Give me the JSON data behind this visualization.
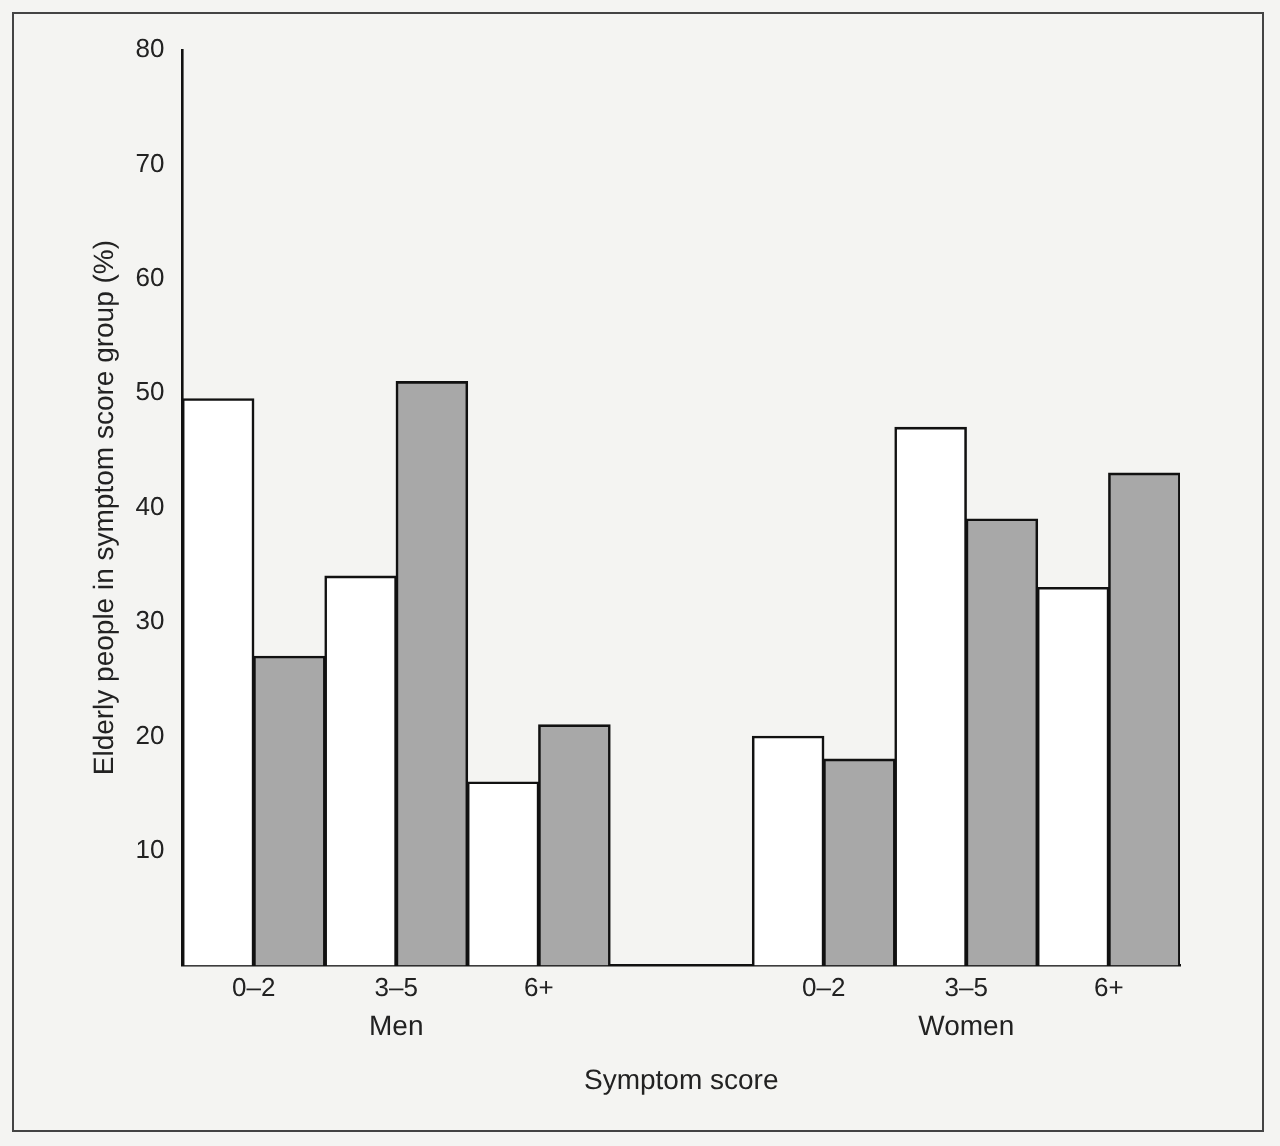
{
  "chart_data": {
    "type": "bar",
    "xlabel": "Symptom score",
    "ylabel": "Elderly people in symptom score group (%)",
    "categories": [
      "0–2",
      "3–5",
      "6+",
      null,
      "0–2",
      "3–5",
      "6+"
    ],
    "series": [
      {
        "color": "#ffffff",
        "values": [
          49.5,
          34,
          16,
          null,
          20,
          47,
          33
        ]
      },
      {
        "color": "#a8a8a8",
        "values": [
          27,
          51,
          21,
          null,
          18,
          39,
          43
        ]
      }
    ],
    "ylim": [
      0,
      80
    ],
    "yticks": [
      10,
      20,
      30,
      40,
      50,
      60,
      70,
      80
    ],
    "grid": false,
    "legend": false,
    "annotations": [
      "Men",
      "Women"
    ]
  }
}
